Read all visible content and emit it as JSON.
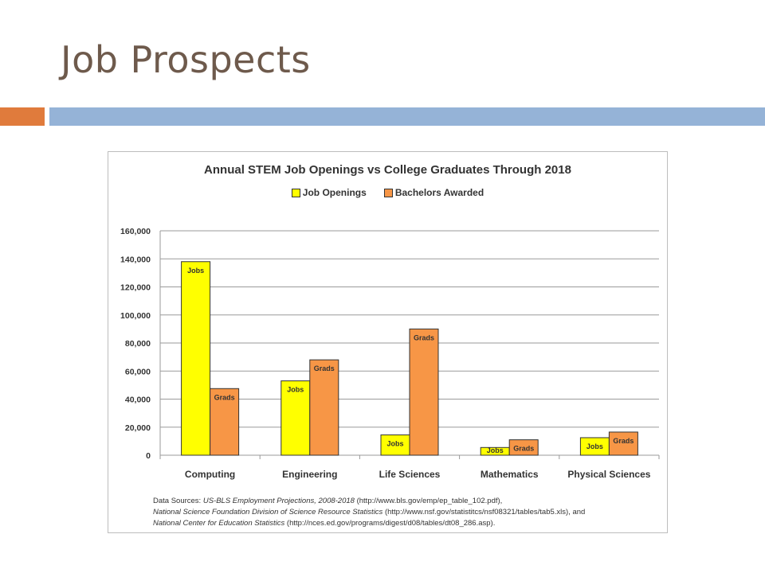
{
  "slide": {
    "title": "Job Prospects",
    "colors": {
      "title": "#6e5a4c",
      "accent": "#e07b3c",
      "band": "#95b3d7"
    }
  },
  "chart_data": {
    "type": "bar",
    "title": "Annual STEM Job Openings vs College Graduates Through 2018",
    "categories": [
      "Computing",
      "Engineering",
      "Life Sciences",
      "Mathematics",
      "Physical Sciences"
    ],
    "series": [
      {
        "name": "Job Openings",
        "color": "#ffff00",
        "bar_label": "Jobs",
        "values": [
          138000,
          53000,
          14500,
          5500,
          12500
        ]
      },
      {
        "name": "Bachelors Awarded",
        "color": "#f79646",
        "bar_label": "Grads",
        "values": [
          47500,
          68000,
          90000,
          11000,
          16500
        ]
      }
    ],
    "ylim": [
      0,
      160000
    ],
    "yticks": [
      0,
      20000,
      40000,
      60000,
      80000,
      100000,
      120000,
      140000,
      160000
    ],
    "ytick_labels": [
      "0",
      "20,000",
      "40,000",
      "60,000",
      "80,000",
      "100,000",
      "120,000",
      "140,000",
      "160,000"
    ],
    "xlabel": "",
    "ylabel": "",
    "grid": true,
    "legend_position": "top-center",
    "sources": {
      "line1_prefix": "Data Sources: ",
      "line1_italic": "US-BLS Employment Projections, 2008-2018",
      "line1_rest": " (http://www.bls.gov/emp/ep_table_102.pdf),",
      "line2_italic": "National Science Foundation Division of Science Resource Statistics",
      "line2_rest": " (http://www.nsf.gov/statistitcs/nsf08321/tables/tab5.xls), and",
      "line3_italic": "National Center for Education Statistics",
      "line3_rest": " (http://nces.ed.gov/programs/digest/d08/tables/dt08_286.asp)."
    }
  }
}
